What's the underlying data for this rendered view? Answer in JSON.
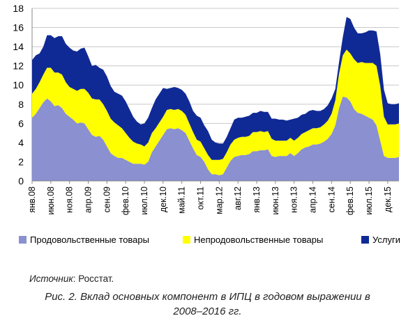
{
  "chart_data": {
    "type": "area",
    "stacked": true,
    "ylim": [
      0,
      18
    ],
    "yticks": [
      0,
      2,
      4,
      6,
      8,
      10,
      12,
      14,
      16,
      18
    ],
    "grid": true,
    "legend_position": "bottom",
    "x": [
      "янв.08",
      "фев.08",
      "мар.08",
      "апр.08",
      "май.08",
      "июн.08",
      "июл.08",
      "авг.08",
      "сен.08",
      "окт.08",
      "ноя.08",
      "дек.08",
      "янв.09",
      "фев.09",
      "мар.09",
      "апр.09",
      "май.09",
      "июн.09",
      "июл.09",
      "авг.09",
      "сен.09",
      "окт.09",
      "ноя.09",
      "дек.09",
      "янв.10",
      "фев.10",
      "мар.10",
      "апр.10",
      "май.10",
      "июн.10",
      "июл.10",
      "авг.10",
      "сен.10",
      "окт.10",
      "ноя.10",
      "дек.10",
      "янв.11",
      "фев.11",
      "мар.11",
      "апр.11",
      "май.11",
      "июн.11",
      "июл.11",
      "авг.11",
      "сен.11",
      "окт.11",
      "ноя.11",
      "дек.11",
      "янв.12",
      "фев.12",
      "мар.12",
      "апр.12",
      "май.12",
      "июн.12",
      "июл.12",
      "авг.12",
      "сен.12",
      "окт.12",
      "ноя.12",
      "дек.12",
      "янв.13",
      "фев.13",
      "мар.13",
      "апр.13",
      "май.13",
      "июн.13",
      "июл.13",
      "авг.13",
      "сен.13",
      "окт.13",
      "ноя.13",
      "дек.13",
      "янв.14",
      "фев.14",
      "мар.14",
      "апр.14",
      "май.14",
      "июн.14",
      "июл.14",
      "авг.14",
      "сен.14",
      "окт.14",
      "ноя.14",
      "дек.14",
      "янв.15",
      "фев.15",
      "мар.15",
      "апр.15",
      "май.15",
      "июн.15",
      "июл.15",
      "авг.15",
      "сен.15",
      "окт.15",
      "ноя.15",
      "дек.15",
      "янв.16",
      "фев.16",
      "мар.16"
    ],
    "xtick_labels": [
      "янв.08",
      "июн.08",
      "ноя.08",
      "апр.09",
      "сен.09",
      "фев.10",
      "июл.10",
      "дек.10",
      "май.11",
      "окт.11",
      "мар.12",
      "авг.12",
      "янв.13",
      "июн.13",
      "ноя.13",
      "апр.14",
      "сен.14",
      "фев.15",
      "июл.15",
      "дек.15"
    ],
    "xtick_index": [
      0,
      5,
      10,
      15,
      20,
      25,
      30,
      35,
      40,
      45,
      50,
      55,
      60,
      65,
      70,
      75,
      80,
      85,
      90,
      95
    ],
    "series": [
      {
        "name": "Продовольственные товары",
        "color": "#8a90d0",
        "values": [
          6.6,
          7.0,
          7.6,
          8.2,
          8.6,
          8.3,
          7.8,
          7.9,
          7.6,
          7.0,
          6.7,
          6.4,
          6.0,
          6.1,
          6.0,
          5.4,
          4.8,
          4.6,
          4.7,
          4.3,
          3.6,
          2.9,
          2.6,
          2.4,
          2.4,
          2.2,
          2.0,
          1.8,
          1.8,
          1.8,
          1.7,
          2.0,
          3.0,
          3.6,
          4.2,
          4.8,
          5.4,
          5.5,
          5.4,
          5.5,
          5.3,
          5.0,
          4.2,
          3.4,
          2.7,
          2.5,
          2.0,
          1.2,
          0.7,
          0.7,
          0.6,
          0.7,
          1.4,
          2.1,
          2.5,
          2.6,
          2.7,
          2.7,
          2.8,
          3.1,
          3.1,
          3.2,
          3.2,
          3.3,
          2.6,
          2.5,
          2.6,
          2.6,
          2.6,
          2.9,
          2.6,
          2.9,
          3.3,
          3.5,
          3.6,
          3.8,
          3.8,
          3.9,
          4.1,
          4.4,
          4.9,
          5.8,
          7.6,
          8.8,
          8.7,
          8.3,
          7.5,
          7.1,
          7.0,
          6.8,
          6.6,
          6.4,
          5.8,
          4.2,
          2.6,
          2.4,
          2.4,
          2.4,
          2.5
        ]
      },
      {
        "name": "Непродовольственные товары",
        "color": "#ffff00",
        "values": [
          2.5,
          2.6,
          2.7,
          2.9,
          3.2,
          3.5,
          3.5,
          3.4,
          3.5,
          3.3,
          3.1,
          3.2,
          3.4,
          3.5,
          3.6,
          3.8,
          3.8,
          3.9,
          3.8,
          3.7,
          3.7,
          3.6,
          3.5,
          3.4,
          3.1,
          2.8,
          2.5,
          2.3,
          2.1,
          2.0,
          1.9,
          2.0,
          2.0,
          1.9,
          1.9,
          1.9,
          2.0,
          2.0,
          2.0,
          2.0,
          2.0,
          1.9,
          1.8,
          1.7,
          1.6,
          1.6,
          1.4,
          1.5,
          1.5,
          1.5,
          1.6,
          1.6,
          1.6,
          1.7,
          1.8,
          1.9,
          1.9,
          1.9,
          1.9,
          2.0,
          2.0,
          2.0,
          1.9,
          1.9,
          1.8,
          1.7,
          1.6,
          1.6,
          1.6,
          1.6,
          1.6,
          1.6,
          1.6,
          1.6,
          1.7,
          1.7,
          1.7,
          1.7,
          1.8,
          1.9,
          2.1,
          2.6,
          3.6,
          4.3,
          5.0,
          5.0,
          5.2,
          5.2,
          5.4,
          5.5,
          5.7,
          5.9,
          6.2,
          5.7,
          4.1,
          3.5,
          3.5,
          3.5,
          3.5
        ]
      },
      {
        "name": "Услуги",
        "color": "#102a95",
        "values": [
          3.5,
          3.5,
          3.0,
          2.9,
          3.4,
          3.4,
          3.6,
          3.8,
          4.0,
          4.0,
          4.1,
          4.0,
          4.1,
          4.2,
          4.3,
          3.8,
          3.4,
          3.6,
          3.3,
          3.6,
          3.6,
          3.4,
          3.2,
          3.3,
          3.4,
          3.3,
          3.0,
          2.6,
          2.3,
          2.1,
          2.4,
          2.6,
          2.6,
          3.0,
          3.0,
          3.0,
          2.2,
          2.2,
          2.4,
          2.2,
          2.2,
          2.2,
          2.3,
          2.2,
          2.5,
          2.5,
          2.4,
          2.5,
          2.1,
          1.8,
          1.7,
          1.6,
          1.6,
          1.7,
          2.1,
          2.1,
          2.0,
          2.1,
          2.1,
          2.0,
          2.0,
          2.1,
          2.1,
          2.0,
          2.1,
          2.3,
          2.2,
          2.2,
          2.1,
          1.9,
          2.3,
          2.1,
          2.0,
          1.9,
          2.0,
          1.9,
          1.8,
          1.7,
          1.6,
          1.6,
          1.6,
          1.2,
          1.2,
          1.9,
          3.4,
          3.6,
          3.3,
          3.1,
          3.0,
          3.2,
          3.4,
          3.4,
          3.6,
          3.3,
          2.8,
          2.2,
          2.1,
          2.1,
          2.1
        ]
      }
    ]
  },
  "legend": {
    "items": [
      {
        "label": "Продовольственные товары",
        "color": "#8a90d0"
      },
      {
        "label": "Непродовольственные товары",
        "color": "#ffff00"
      },
      {
        "label": "Услуги",
        "color": "#102a95"
      }
    ]
  },
  "source": {
    "prefix": "Источник",
    "text": ": Росстат."
  },
  "caption": {
    "line1": "Рис. 2. Вклад основных компонент в ИПЦ в годовом выражении в",
    "line2": "2008–2016 гг."
  }
}
